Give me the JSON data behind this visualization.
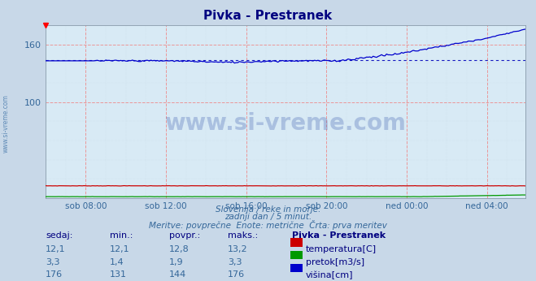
{
  "title": "Pivka - Prestranek",
  "title_color": "#000080",
  "bg_color": "#c8d8e8",
  "plot_bg_color": "#d8eaf5",
  "grid_color_major": "#ee8888",
  "grid_color_minor": "#bbccdd",
  "ylim": [
    0,
    180
  ],
  "yticks_major": [
    100,
    160
  ],
  "x_labels": [
    "sob 08:00",
    "sob 12:00",
    "sob 16:00",
    "sob 20:00",
    "ned 00:00",
    "ned 04:00"
  ],
  "x_tick_indices": [
    24,
    72,
    120,
    168,
    216,
    264
  ],
  "n_points": 288,
  "color_temp": "#cc0000",
  "color_flow": "#009900",
  "color_height": "#0000cc",
  "color_avg_dotted": "#0000bb",
  "watermark_text": "www.si-vreme.com",
  "watermark_color": "#3355aa",
  "watermark_alpha": 0.28,
  "footer_line1": "Slovenija / reke in morje.",
  "footer_line2": "zadnji dan / 5 minut.",
  "footer_line3": "Meritve: povprečne  Enote: metrične  Črta: prva meritev",
  "footer_color": "#336699",
  "table_title": "Pivka - Prestranek",
  "table_color": "#000080",
  "label_color": "#336699",
  "sidebar_color": "#4477aa",
  "row_data": [
    {
      "sedaj": "12,1",
      "min": "12,1",
      "povpr": "12,8",
      "maks": "13,2",
      "label": "temperatura[C]",
      "color": "#cc0000"
    },
    {
      "sedaj": "3,3",
      "min": "1,4",
      "povpr": "1,9",
      "maks": "3,3",
      "label": "pretok[m3/s]",
      "color": "#009900"
    },
    {
      "sedaj": "176",
      "min": "131",
      "povpr": "144",
      "maks": "176",
      "label": "višina[cm]",
      "color": "#0000cc"
    }
  ],
  "col_headers": [
    "sedaj:",
    "min.:",
    "povpr.:",
    "maks.:",
    "Pivka - Prestranek"
  ]
}
